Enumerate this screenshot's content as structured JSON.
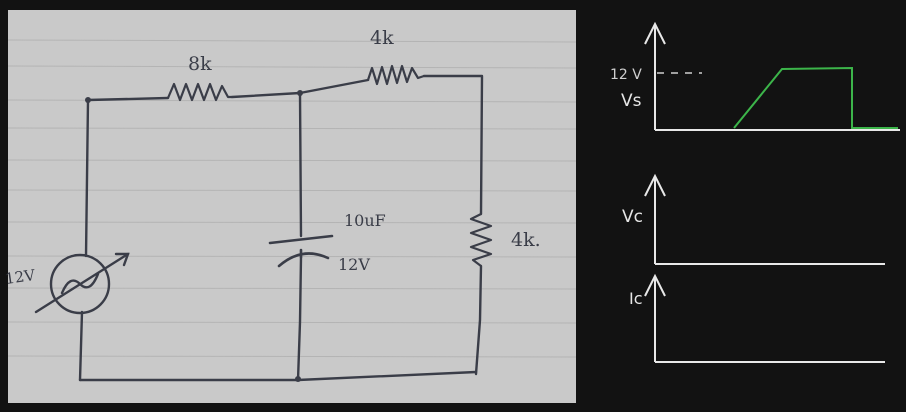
{
  "circuit": {
    "source_label": "12V",
    "r_top_left_label": "8k",
    "r_top_right_label": "4k",
    "r_right_label": "4k.",
    "cap_value_label": "10uF",
    "cap_voltage_label": "12V"
  },
  "graphs": {
    "vs": {
      "axis_label": "Vs",
      "level_label": "12 V",
      "waveform_level_v": 12
    },
    "vc": {
      "axis_label": "Vc"
    },
    "ic": {
      "axis_label": "Ic"
    }
  },
  "colors": {
    "background": "#121212",
    "paper": "#c9c9c9",
    "ink": "#3a3d48",
    "waveform": "#3cb54a",
    "axes": "#e8e8e8"
  }
}
